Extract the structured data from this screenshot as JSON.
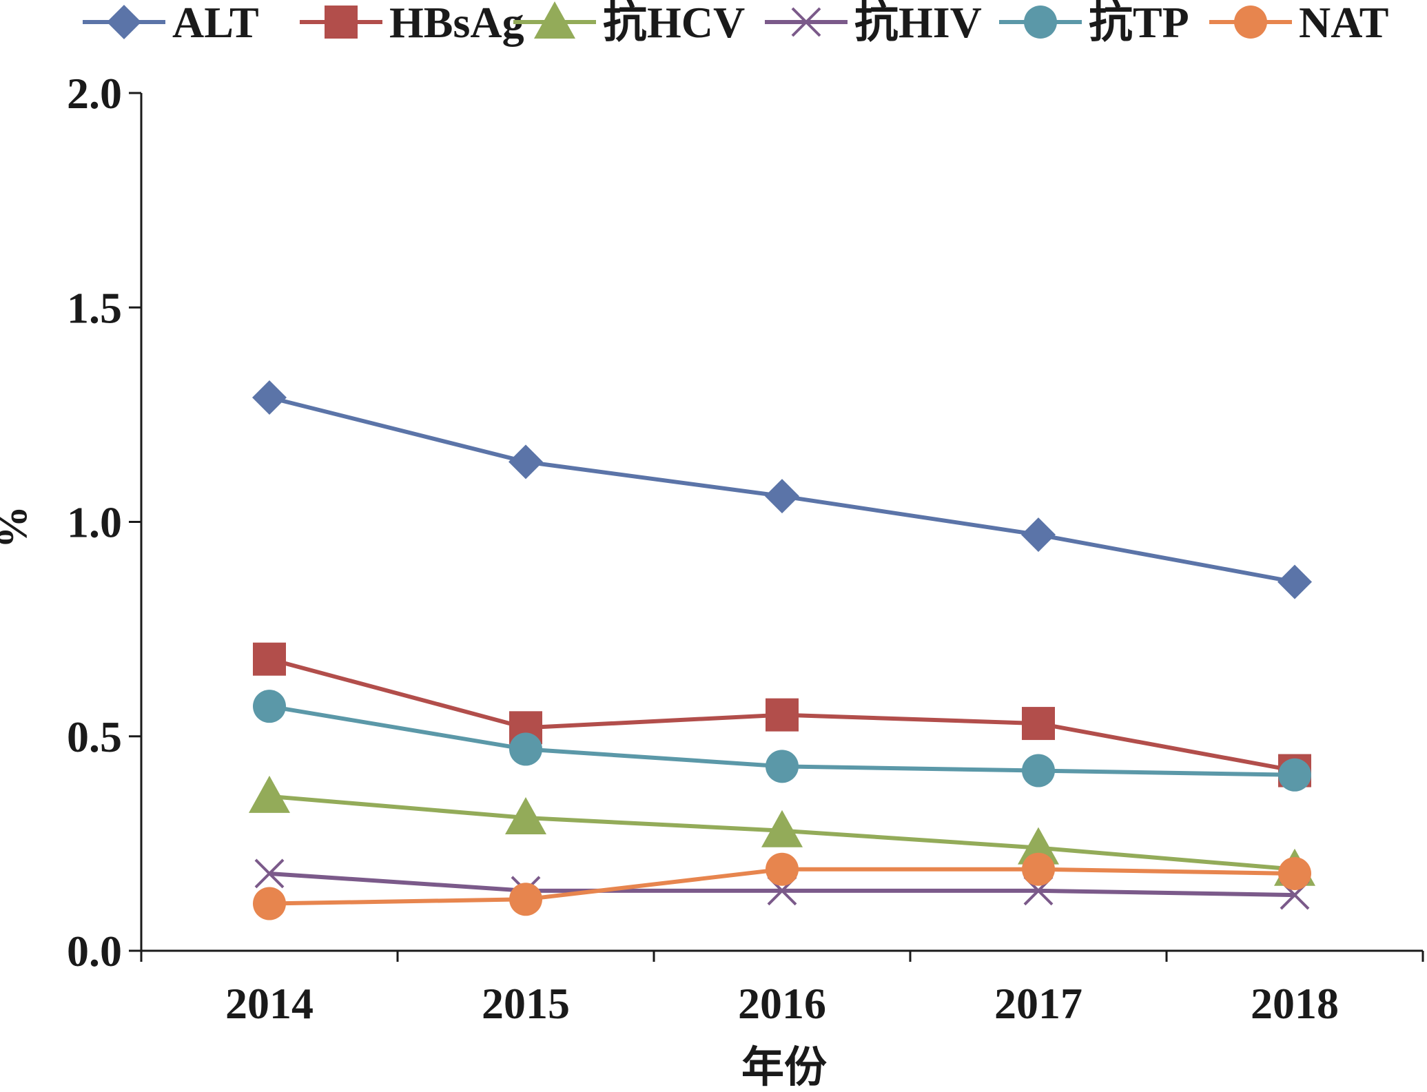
{
  "chart_data": {
    "type": "line",
    "title": "",
    "xlabel": "年份",
    "ylabel": "%",
    "x": [
      "2014",
      "2015",
      "2016",
      "2017",
      "2018"
    ],
    "ylim": [
      0,
      2.0
    ],
    "yticks": [
      "0.0",
      "0.5",
      "1.0",
      "1.5",
      "2.0"
    ],
    "grid": false,
    "legend_position": "top",
    "series": [
      {
        "name": "ALT",
        "color": "#5b74a8",
        "marker": "diamond",
        "values": [
          1.29,
          1.14,
          1.06,
          0.97,
          0.86
        ]
      },
      {
        "name": "HBsAg",
        "color": "#b24e4b",
        "marker": "square",
        "values": [
          0.68,
          0.52,
          0.55,
          0.53,
          0.42
        ]
      },
      {
        "name": "抗HCV",
        "color": "#93ab59",
        "marker": "triangle",
        "values": [
          0.36,
          0.31,
          0.28,
          0.24,
          0.19
        ]
      },
      {
        "name": "抗HIV",
        "color": "#7b5a8a",
        "marker": "x",
        "values": [
          0.18,
          0.14,
          0.14,
          0.14,
          0.13
        ]
      },
      {
        "name": "抗TP",
        "color": "#5b98a8",
        "marker": "circle",
        "values": [
          0.57,
          0.47,
          0.43,
          0.42,
          0.41
        ]
      },
      {
        "name": "NAT",
        "color": "#e7854e",
        "marker": "circle",
        "values": [
          0.11,
          0.12,
          0.19,
          0.19,
          0.18
        ]
      }
    ]
  }
}
